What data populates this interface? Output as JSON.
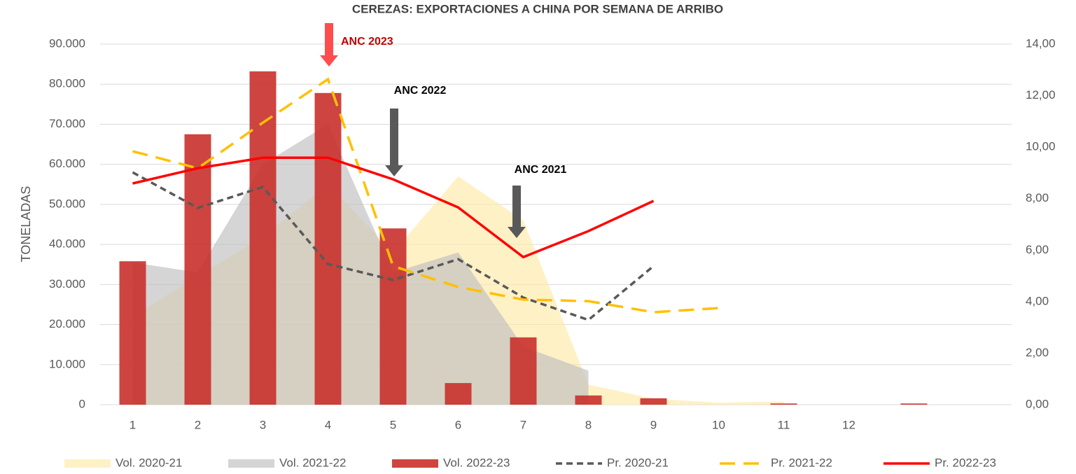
{
  "chart_data": {
    "type": "combo",
    "title": "CEREZAS: EXPORTACIONES A CHINA POR SEMANA DE ARRIBO",
    "y_label": "TONELADAS",
    "categories": [
      "1",
      "2",
      "3",
      "4",
      "5",
      "6",
      "7",
      "8",
      "9",
      "10",
      "11",
      "12",
      null,
      null
    ],
    "ylim": [
      0,
      90000
    ],
    "yticks": [
      0,
      {
        "value": 10000,
        "label": "10.000"
      },
      {
        "value": 20000,
        "label": "20.000"
      },
      {
        "value": 30000,
        "label": "30.000"
      },
      {
        "value": 40000,
        "label": "40.000"
      },
      {
        "value": 50000,
        "label": "50.000"
      },
      {
        "value": 60000,
        "label": "60.000"
      },
      {
        "value": 70000,
        "label": "70.000"
      },
      {
        "value": 80000,
        "label": "80.000"
      },
      {
        "value": 90000,
        "label": "90.000"
      }
    ],
    "y2lim": [
      0,
      14
    ],
    "y2ticks": [
      {
        "value": 0,
        "label": "0,00"
      },
      {
        "value": 2,
        "label": "2,00"
      },
      {
        "value": 4,
        "label": "4,00"
      },
      {
        "value": 6,
        "label": "6,00"
      },
      {
        "value": 8,
        "label": "8,00"
      },
      {
        "value": 10,
        "label": "10,00"
      },
      {
        "value": 12,
        "label": "12,00"
      },
      {
        "value": 14,
        "label": "14,00"
      }
    ],
    "grid": true,
    "legend": "bottom",
    "series": [
      {
        "name": "Vol. 2020-21",
        "type": "area",
        "color": "#ffe9a8",
        "values": [
          22000,
          32000,
          42000,
          55000,
          38000,
          57000,
          46000,
          5000,
          1500,
          500,
          800,
          null,
          null,
          null
        ]
      },
      {
        "name": "Vol. 2021-22",
        "type": "area",
        "color": "#bfbfbf",
        "values": [
          35500,
          33000,
          60000,
          70000,
          33000,
          38000,
          14500,
          8500,
          null,
          null,
          null,
          null,
          null,
          null
        ]
      },
      {
        "name": "Vol. 2022-23",
        "type": "bar",
        "color": "#c9302c",
        "values": [
          35800,
          67500,
          83200,
          77800,
          44000,
          5400,
          16800,
          2300,
          1600,
          0,
          300,
          0,
          300,
          null
        ]
      },
      {
        "name": "Pr. 2020-21",
        "type": "line",
        "axis": "y2",
        "line_style": "dash",
        "color": "#595959",
        "values": [
          9.02,
          7.64,
          8.45,
          5.46,
          4.84,
          5.65,
          4.16,
          3.29,
          5.38,
          null,
          null,
          null,
          null,
          null
        ]
      },
      {
        "name": "Pr. 2021-22",
        "type": "line",
        "axis": "y2",
        "line_style": "long-dash",
        "color": "#ffc000",
        "values": [
          9.84,
          9.18,
          10.95,
          12.64,
          5.38,
          4.57,
          4.08,
          4.02,
          3.59,
          3.75,
          null,
          null,
          null,
          null
        ]
      },
      {
        "name": "Pr. 2022-23",
        "type": "line",
        "axis": "y2",
        "line_style": "solid",
        "color": "#ff0000",
        "values": [
          8.59,
          9.18,
          9.59,
          9.59,
          8.75,
          7.66,
          5.73,
          6.74,
          7.91,
          null,
          null,
          null,
          null,
          null
        ]
      }
    ],
    "annotations": [
      {
        "text": "ANC 2023",
        "color": "#c00000"
      },
      {
        "text": "ANC 2022",
        "color": "#000000"
      },
      {
        "text": "ANC 2021",
        "color": "#000000"
      }
    ]
  }
}
